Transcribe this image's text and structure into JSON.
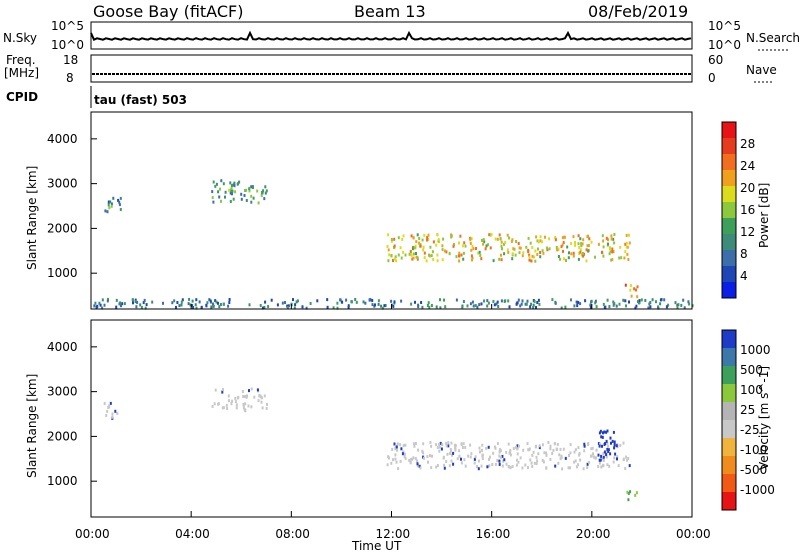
{
  "header": {
    "station": "Goose Bay (fitACF)",
    "beam": "Beam 13",
    "date": "08/Feb/2019"
  },
  "nsky_panel": {
    "label": "N.Sky",
    "right_label": "N.Search",
    "left_ticks": [
      "10^5",
      "10^0"
    ],
    "right_ticks": [
      "10^5",
      "10^0"
    ]
  },
  "freq_panel": {
    "label_line1": "Freq.",
    "label_line2": "[MHz]",
    "left_ticks": [
      "18",
      "8"
    ],
    "right_label": "Nave",
    "right_ticks": [
      "60",
      "0"
    ]
  },
  "cpid_panel": {
    "label": "CPID",
    "mode": "tau (fast) 503"
  },
  "colors": {
    "power_scale": [
      "#0a1ee6",
      "#1e46b4",
      "#3c6eaa",
      "#3c8c78",
      "#3ca05a",
      "#8cc83c",
      "#dcdc1e",
      "#f0a01e",
      "#f06e1e",
      "#e63c1e",
      "#e61414"
    ],
    "velocity_scale": [
      "#e61414",
      "#f05a14",
      "#f08c1e",
      "#f0b43c",
      "#c8c8c8",
      "#b4b4b4",
      "#8cc83c",
      "#3ca05a",
      "#3c78aa",
      "#1e3cc8"
    ]
  },
  "chart_data": [
    {
      "type": "heatmap",
      "name_on_colorbar": "Power [dB]",
      "ylabel": "Slant Range [km]",
      "y_ticks": [
        "1000",
        "2000",
        "3000",
        "4000"
      ],
      "ylim": [
        200,
        4600
      ],
      "colorbar_ticks": [
        "4",
        "8",
        "12",
        "16",
        "20",
        "24",
        "28"
      ],
      "colorbar_range": [
        0,
        32
      ],
      "regions": [
        {
          "t": [
            0.5,
            1.2
          ],
          "r": [
            2400,
            2800
          ],
          "value": 10
        },
        {
          "t": [
            4.8,
            7.0
          ],
          "r": [
            2600,
            3100
          ],
          "value": 12
        },
        {
          "t": [
            11.8,
            21.5
          ],
          "r": [
            1300,
            1900
          ],
          "value": 20
        },
        {
          "t": [
            21.3,
            21.8
          ],
          "r": [
            500,
            800
          ],
          "value": 24
        },
        {
          "t": [
            0.0,
            24.0
          ],
          "r": [
            250,
            450
          ],
          "value": 8
        }
      ]
    },
    {
      "type": "heatmap",
      "name_on_colorbar": "Velocity [m s^-1]",
      "ylabel": "Slant Range [km]",
      "y_ticks": [
        "1000",
        "2000",
        "3000",
        "4000"
      ],
      "ylim": [
        200,
        4600
      ],
      "colorbar_ticks": [
        "1000",
        "500",
        "100",
        "25",
        "-25",
        "-100",
        "-500",
        "-1000"
      ],
      "regions": [
        {
          "t": [
            0.5,
            1.2
          ],
          "r": [
            2400,
            2800
          ],
          "value": 0
        },
        {
          "t": [
            4.8,
            7.0
          ],
          "r": [
            2600,
            3100
          ],
          "value": 0
        },
        {
          "t": [
            11.8,
            21.5
          ],
          "r": [
            1300,
            1900
          ],
          "value": 0
        },
        {
          "t": [
            20.2,
            21.0
          ],
          "r": [
            1500,
            2200
          ],
          "value": 500
        },
        {
          "t": [
            21.3,
            21.8
          ],
          "r": [
            500,
            800
          ],
          "value": 100
        }
      ]
    }
  ],
  "time_axis": {
    "label": "Time UT",
    "ticks": [
      "00:00",
      "04:00",
      "08:00",
      "12:00",
      "16:00",
      "20:00",
      "00:00"
    ],
    "range_hours": [
      0,
      24
    ]
  }
}
